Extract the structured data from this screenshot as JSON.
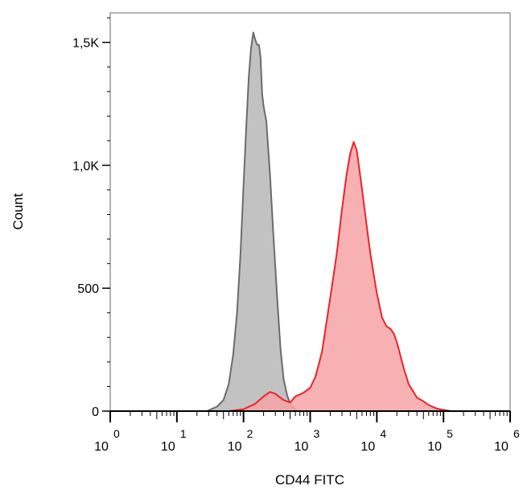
{
  "chart_data": {
    "type": "area",
    "xlabel": "CD44 FITC",
    "ylabel": "Count",
    "x_scale": "log",
    "xlim": [
      1,
      1000000
    ],
    "ylim": [
      0,
      1620
    ],
    "y_ticks": [
      {
        "value": 0,
        "label": "0"
      },
      {
        "value": 500,
        "label": "500"
      },
      {
        "value": 1000,
        "label": "1,0K"
      },
      {
        "value": 1500,
        "label": "1,5K"
      }
    ],
    "x_ticks": [
      {
        "value": 1,
        "base": "10",
        "exp": "0"
      },
      {
        "value": 10,
        "base": "10",
        "exp": "1"
      },
      {
        "value": 100,
        "base": "10",
        "exp": "2"
      },
      {
        "value": 1000,
        "base": "10",
        "exp": "3"
      },
      {
        "value": 10000,
        "base": "10",
        "exp": "4"
      },
      {
        "value": 100000,
        "base": "10",
        "exp": "5"
      },
      {
        "value": 1000000,
        "base": "10",
        "exp": "6"
      }
    ],
    "grid": false,
    "series": [
      {
        "color": "#6b6b6b",
        "fill": "#bdbdbd",
        "x": [
          1,
          28,
          40,
          50,
          60,
          70,
          80,
          90,
          100,
          110,
          120,
          130,
          140,
          150,
          160,
          170,
          180,
          190,
          200,
          220,
          250,
          280,
          320,
          360,
          400,
          450,
          500,
          560,
          650,
          1000000
        ],
        "y": [
          0,
          0,
          18,
          45,
          110,
          230,
          400,
          640,
          920,
          1160,
          1360,
          1480,
          1540,
          1510,
          1490,
          1490,
          1440,
          1290,
          1240,
          1180,
          960,
          720,
          460,
          250,
          130,
          65,
          30,
          12,
          0,
          0
        ]
      },
      {
        "color": "#e8242b",
        "fill": "#f7a3a6",
        "x": [
          1,
          60,
          100,
          150,
          200,
          250,
          300,
          400,
          500,
          600,
          800,
          1000,
          1200,
          1500,
          2000,
          2500,
          3000,
          3500,
          4000,
          4500,
          5000,
          5500,
          6000,
          7000,
          8000,
          10000,
          12000,
          14000,
          16000,
          18000,
          20000,
          25000,
          30000,
          40000,
          50000,
          60000,
          80000,
          100000,
          130000,
          1000000
        ],
        "y": [
          0,
          0,
          8,
          30,
          60,
          78,
          70,
          45,
          35,
          60,
          75,
          95,
          140,
          240,
          460,
          640,
          820,
          960,
          1050,
          1095,
          1060,
          980,
          900,
          760,
          640,
          480,
          380,
          345,
          335,
          315,
          280,
          180,
          110,
          55,
          40,
          25,
          10,
          5,
          0,
          0
        ]
      }
    ]
  }
}
